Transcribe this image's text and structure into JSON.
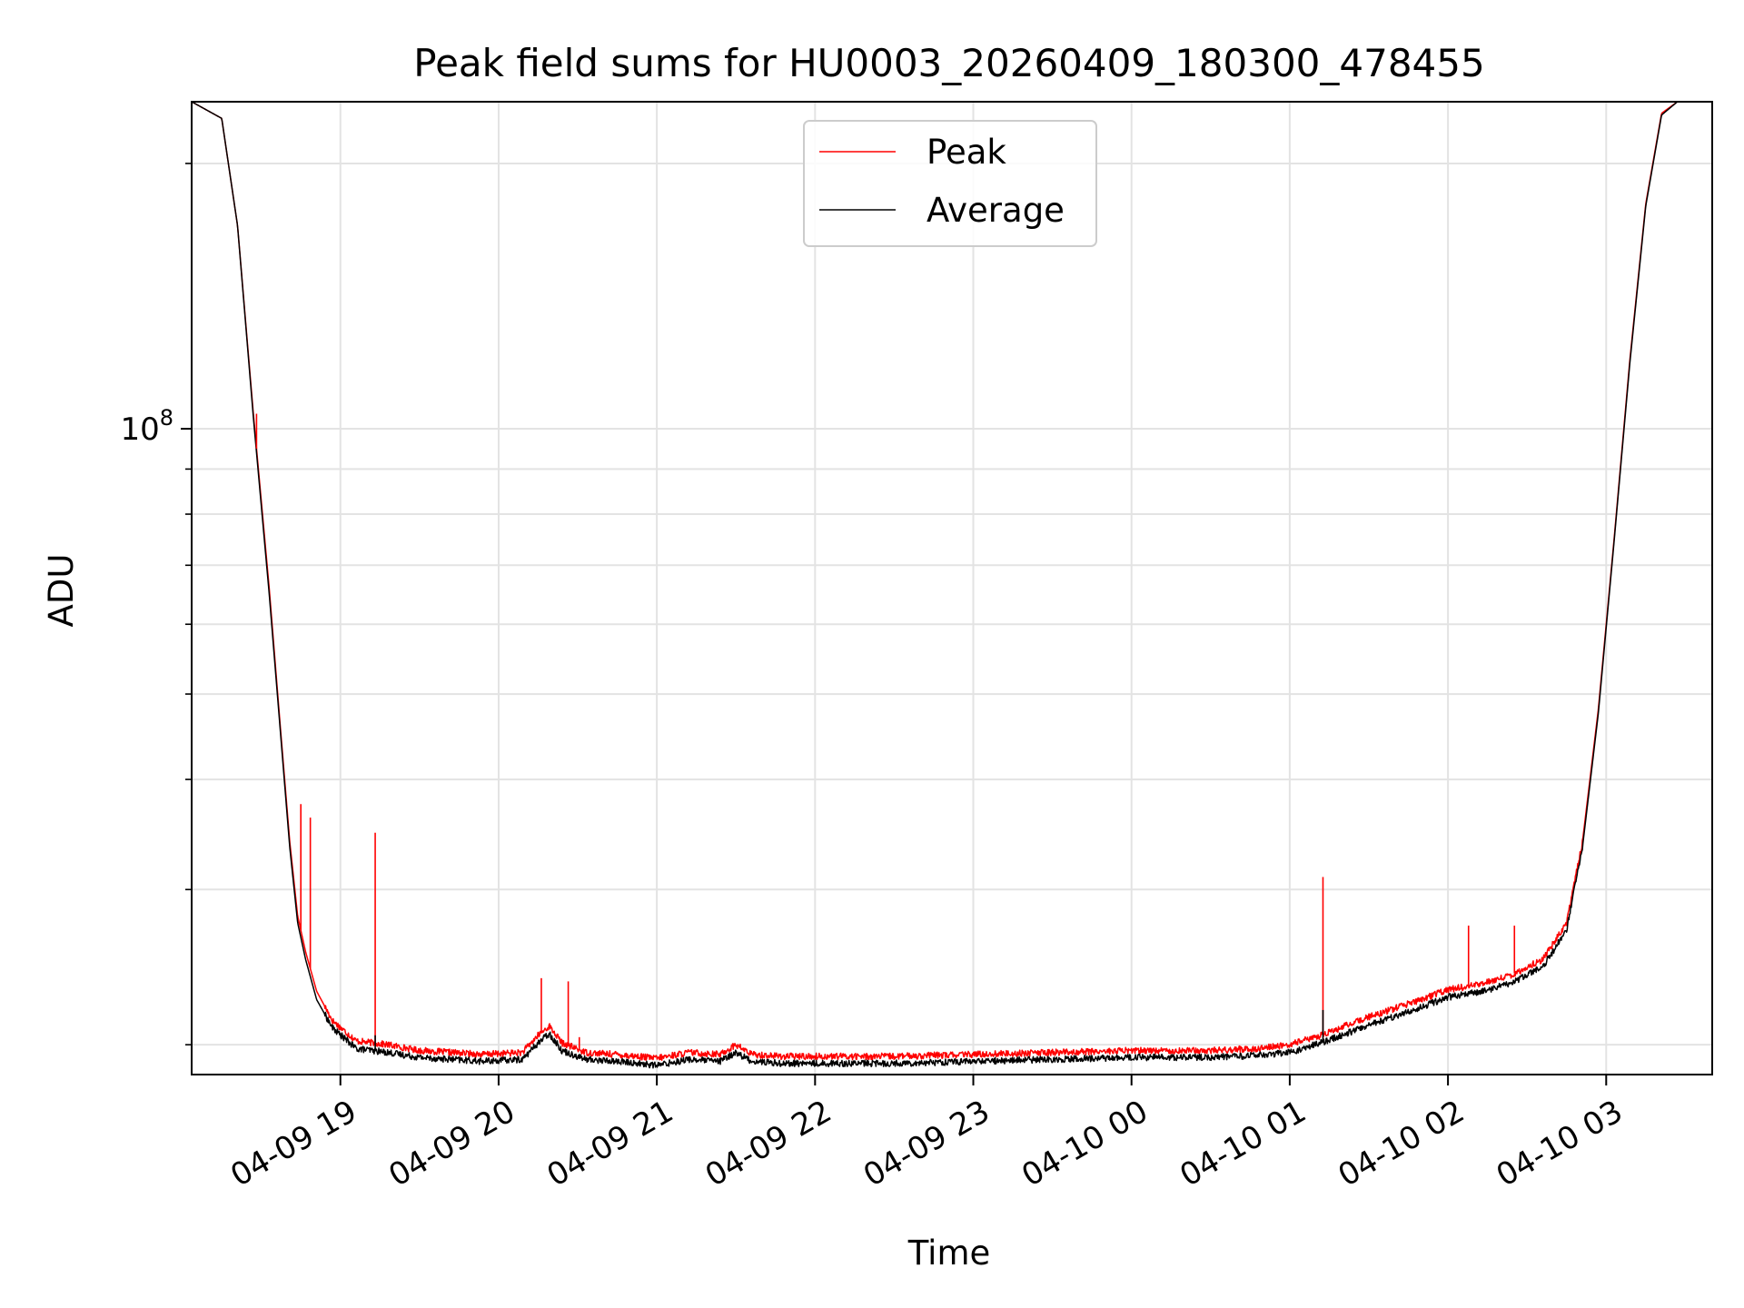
{
  "chart_data": {
    "type": "line",
    "title": "Peak field sums for HU0003_20260409_180300_478455",
    "xlabel": "Time",
    "ylabel": "ADU",
    "yscale": "log",
    "ylim": [
      18500000,
      235000000
    ],
    "xlim_hours": [
      18.06,
      27.67
    ],
    "grid": true,
    "legend_position": "upper center",
    "x_ticks": [
      {
        "label": "04-09 19",
        "hour": 19
      },
      {
        "label": "04-09 20",
        "hour": 20
      },
      {
        "label": "04-09 21",
        "hour": 21
      },
      {
        "label": "04-09 22",
        "hour": 22
      },
      {
        "label": "04-09 23",
        "hour": 23
      },
      {
        "label": "04-10 00",
        "hour": 24
      },
      {
        "label": "04-10 01",
        "hour": 25
      },
      {
        "label": "04-10 02",
        "hour": 26
      },
      {
        "label": "04-10 03",
        "hour": 27
      }
    ],
    "y_major_ticks": [
      {
        "value": 100000000,
        "base": "10",
        "exp": "8"
      }
    ],
    "y_minor_ticks": [
      20000000,
      30000000,
      40000000,
      50000000,
      60000000,
      70000000,
      80000000,
      90000000,
      200000000
    ],
    "series": [
      {
        "name": "Peak",
        "color": "#ff0000",
        "hours": [
          18.06,
          18.25,
          18.35,
          18.45,
          18.55,
          18.62,
          18.68,
          18.73,
          18.78,
          18.85,
          18.95,
          19.1,
          19.3,
          19.5,
          19.7,
          19.9,
          20.15,
          20.25,
          20.32,
          20.4,
          20.55,
          20.75,
          21.0,
          21.2,
          21.4,
          21.5,
          21.6,
          21.8,
          22.0,
          22.5,
          23.0,
          23.5,
          24.0,
          24.5,
          24.8,
          25.0,
          25.2,
          25.5,
          25.8,
          26.0,
          26.2,
          26.4,
          26.6,
          26.75,
          26.85,
          26.95,
          27.05,
          27.15,
          27.25,
          27.35,
          27.45,
          27.67
        ],
        "values": [
          235000000,
          225000000,
          170000000,
          104000000,
          66000000,
          46000000,
          34000000,
          28000000,
          25500000,
          23000000,
          21300000,
          20200000,
          20000000,
          19700000,
          19600000,
          19500000,
          19600000,
          20500000,
          21000000,
          20100000,
          19600000,
          19500000,
          19300000,
          19600000,
          19500000,
          20000000,
          19500000,
          19400000,
          19400000,
          19400000,
          19500000,
          19600000,
          19700000,
          19700000,
          19800000,
          20000000,
          20500000,
          21500000,
          22400000,
          23100000,
          23400000,
          24000000,
          25000000,
          27500000,
          34000000,
          48000000,
          75000000,
          120000000,
          180000000,
          228000000,
          235000000,
          235000000
        ]
      },
      {
        "name": "Average",
        "color": "#000000",
        "hours": [
          18.06,
          18.25,
          18.35,
          18.45,
          18.55,
          18.62,
          18.68,
          18.73,
          18.78,
          18.85,
          18.95,
          19.1,
          19.3,
          19.5,
          19.7,
          19.9,
          20.15,
          20.25,
          20.32,
          20.4,
          20.55,
          20.75,
          21.0,
          21.2,
          21.4,
          21.5,
          21.6,
          21.8,
          22.0,
          22.5,
          23.0,
          23.5,
          24.0,
          24.5,
          24.8,
          25.0,
          25.2,
          25.5,
          25.8,
          26.0,
          26.2,
          26.4,
          26.6,
          26.75,
          26.85,
          26.95,
          27.05,
          27.15,
          27.25,
          27.35,
          27.45,
          27.67
        ],
        "values": [
          235000000,
          225000000,
          170000000,
          103000000,
          65000000,
          45500000,
          33500000,
          27500000,
          25000000,
          22500000,
          20900000,
          19800000,
          19600000,
          19350000,
          19250000,
          19150000,
          19250000,
          20100000,
          20600000,
          19700000,
          19250000,
          19150000,
          18950000,
          19250000,
          19150000,
          19600000,
          19150000,
          19050000,
          19050000,
          19050000,
          19150000,
          19250000,
          19350000,
          19350000,
          19450000,
          19600000,
          20100000,
          21050000,
          21950000,
          22650000,
          22950000,
          23500000,
          24500000,
          27000000,
          33500000,
          47500000,
          74500000,
          119000000,
          179000000,
          227000000,
          235000000,
          235000000
        ]
      }
    ],
    "spikes": [
      {
        "series": "Peak",
        "hour": 18.47,
        "value": 104000000
      },
      {
        "series": "Peak",
        "hour": 18.75,
        "value": 37500000
      },
      {
        "series": "Peak",
        "hour": 18.81,
        "value": 36200000
      },
      {
        "series": "Peak",
        "hour": 19.22,
        "value": 34800000
      },
      {
        "series": "Peak",
        "hour": 20.27,
        "value": 23800000
      },
      {
        "series": "Peak",
        "hour": 20.44,
        "value": 23600000
      },
      {
        "series": "Peak",
        "hour": 20.51,
        "value": 20400000
      },
      {
        "series": "Peak",
        "hour": 25.21,
        "value": 31000000
      },
      {
        "series": "Peak",
        "hour": 26.13,
        "value": 27300000
      },
      {
        "series": "Peak",
        "hour": 26.42,
        "value": 27300000
      },
      {
        "series": "Average",
        "hour": 19.22,
        "value": 20500000
      },
      {
        "series": "Average",
        "hour": 25.21,
        "value": 21900000
      }
    ]
  }
}
